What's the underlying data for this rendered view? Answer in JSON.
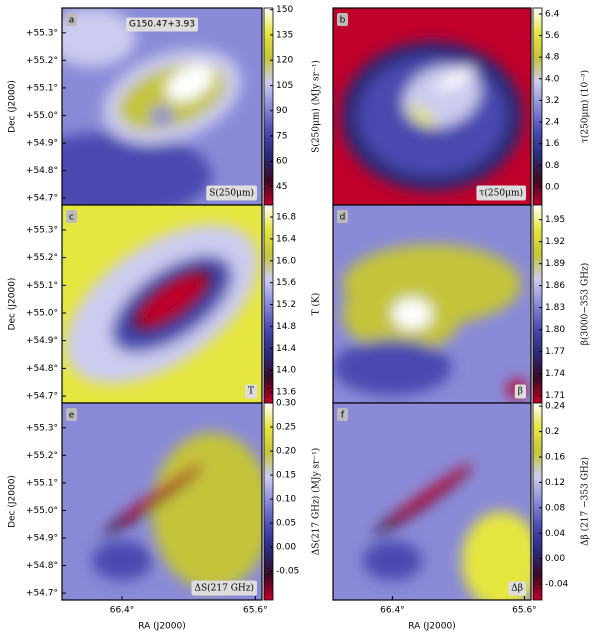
{
  "chart_data": [
    {
      "type": "heatmap",
      "label": "a",
      "caption": "S(250μm)",
      "annotation": "G150.47+3.93",
      "ylabel": "Dec (J2000)",
      "xlim": [
        66.76,
        65.56
      ],
      "ylim": [
        54.675,
        55.39
      ],
      "yticks": [
        {
          "value": 54.7,
          "label": "+54.7°"
        },
        {
          "value": 54.8,
          "label": "+54.8°"
        },
        {
          "value": 54.9,
          "label": "+54.9°"
        },
        {
          "value": 55.0,
          "label": "+55.0°"
        },
        {
          "value": 55.1,
          "label": "+55.1°"
        },
        {
          "value": 55.2,
          "label": "+55.2°"
        },
        {
          "value": 55.3,
          "label": "+55.3°"
        }
      ],
      "colormap": [
        "#c0002a",
        "#3a0a22",
        "#2a2a78",
        "#4a4ab0",
        "#8a8ad8",
        "#ccccf0",
        "#c4c43a",
        "#e6e640",
        "#ffffff"
      ],
      "colorbar": {
        "label": "S(250μm) (MJy sr⁻¹)",
        "lim": [
          34,
          151
        ],
        "ticks": [
          45,
          60,
          75,
          90,
          105,
          120,
          135,
          150
        ]
      }
    },
    {
      "type": "heatmap",
      "label": "b",
      "caption": "τ(250μm)",
      "xlim": [
        66.76,
        65.56
      ],
      "ylim": [
        54.675,
        55.39
      ],
      "colormap": [
        "#c0002a",
        "#3a0a22",
        "#2a2a78",
        "#4a4ab0",
        "#8a8ad8",
        "#ccccf0",
        "#c4c43a",
        "#e6e640",
        "#ffffff"
      ],
      "colorbar": {
        "label": "τ(250μm) (10⁻³)",
        "lim": [
          -0.67,
          6.62
        ],
        "ticks": [
          {
            "value": 0,
            "label": "0.0"
          },
          0.8,
          1.6,
          2.4,
          3.2,
          {
            "value": 4,
            "label": "4.0"
          },
          4.8,
          5.6,
          6.4
        ]
      }
    },
    {
      "type": "heatmap",
      "label": "c",
      "caption": "T",
      "ylabel": "Dec (J2000)",
      "xlim": [
        66.76,
        65.56
      ],
      "ylim": [
        54.675,
        55.39
      ],
      "yticks": [
        {
          "value": 54.7,
          "label": "+54.7°"
        },
        {
          "value": 54.8,
          "label": "+54.8°"
        },
        {
          "value": 54.9,
          "label": "+54.9°"
        },
        {
          "value": 55.0,
          "label": "+55.0°"
        },
        {
          "value": 55.1,
          "label": "+55.1°"
        },
        {
          "value": 55.2,
          "label": "+55.2°"
        },
        {
          "value": 55.3,
          "label": "+55.3°"
        }
      ],
      "colormap": [
        "#c0002a",
        "#3a0a22",
        "#2a2a78",
        "#4a4ab0",
        "#8a8ad8",
        "#ccccf0",
        "#c4c43a",
        "#e6e640",
        "#ffffff"
      ],
      "colorbar": {
        "label": "T (K)",
        "lim": [
          13.4,
          17.02
        ],
        "ticks": [
          13.6,
          {
            "value": 14,
            "label": "14.0"
          },
          14.4,
          14.8,
          15.2,
          15.6,
          {
            "value": 16,
            "label": "16.0"
          },
          16.4,
          16.8
        ]
      }
    },
    {
      "type": "heatmap",
      "label": "d",
      "caption": "β",
      "xlim": [
        66.76,
        65.56
      ],
      "ylim": [
        54.675,
        55.39
      ],
      "colormap": [
        "#c0002a",
        "#3a0a22",
        "#2a2a78",
        "#4a4ab0",
        "#8a8ad8",
        "#ccccf0",
        "#c4c43a",
        "#e6e640",
        "#ffffff"
      ],
      "colorbar": {
        "label": "β(3000−353 GHz)",
        "lim": [
          1.7,
          1.97
        ],
        "ticks": [
          1.71,
          1.74,
          1.77,
          {
            "value": 1.8,
            "label": "1.80"
          },
          1.83,
          1.86,
          1.89,
          1.92,
          1.95
        ]
      }
    },
    {
      "type": "heatmap",
      "label": "e",
      "caption": "ΔS(217 GHz)",
      "ylabel": "Dec (J2000)",
      "xlabel": "RA (J2000)",
      "xlim": [
        66.76,
        65.56
      ],
      "ylim": [
        54.675,
        55.39
      ],
      "xticks": [
        {
          "value": 66.4,
          "label": "66.4°"
        },
        {
          "value": 65.6,
          "label": "65.6°"
        }
      ],
      "yticks": [
        {
          "value": 54.7,
          "label": "+54.7°"
        },
        {
          "value": 54.8,
          "label": "+54.8°"
        },
        {
          "value": 54.9,
          "label": "+54.9°"
        },
        {
          "value": 55.0,
          "label": "+55.0°"
        },
        {
          "value": 55.1,
          "label": "+55.1°"
        },
        {
          "value": 55.2,
          "label": "+55.2°"
        },
        {
          "value": 55.3,
          "label": "+55.3°"
        }
      ],
      "colormap": [
        "#c0002a",
        "#3a0a22",
        "#2a2a78",
        "#4a4ab0",
        "#8a8ad8",
        "#ccccf0",
        "#c4c43a",
        "#e6e640",
        "#ffffff"
      ],
      "colorbar": {
        "label": "ΔS(217 GHz) (MJy sr⁻¹)",
        "lim": [
          -0.11,
          0.3
        ],
        "ticks": [
          -0.05,
          {
            "value": 0,
            "label": "0.00"
          },
          0.05,
          {
            "value": 0.1,
            "label": "0.10"
          },
          0.15,
          {
            "value": 0.2,
            "label": "0.20"
          },
          0.25,
          {
            "value": 0.3,
            "label": "0.30"
          }
        ]
      }
    },
    {
      "type": "heatmap",
      "label": "f",
      "caption": "Δβ",
      "xlabel": "RA (J2000)",
      "xlim": [
        66.76,
        65.56
      ],
      "ylim": [
        54.675,
        55.39
      ],
      "xticks": [
        {
          "value": 66.4,
          "label": "66.4°"
        },
        {
          "value": 65.6,
          "label": "65.6°"
        }
      ],
      "colormap": [
        "#c0002a",
        "#3a0a22",
        "#2a2a78",
        "#4a4ab0",
        "#8a8ad8",
        "#ccccf0",
        "#c4c43a",
        "#e6e640",
        "#ffffff"
      ],
      "colorbar": {
        "label": "Δβ (217 −353 GHz)",
        "lim": [
          -0.065,
          0.245
        ],
        "ticks": [
          -0.04,
          {
            "value": 0,
            "label": "0.00"
          },
          0.04,
          0.08,
          0.12,
          0.16,
          0.2,
          0.24
        ]
      }
    }
  ]
}
